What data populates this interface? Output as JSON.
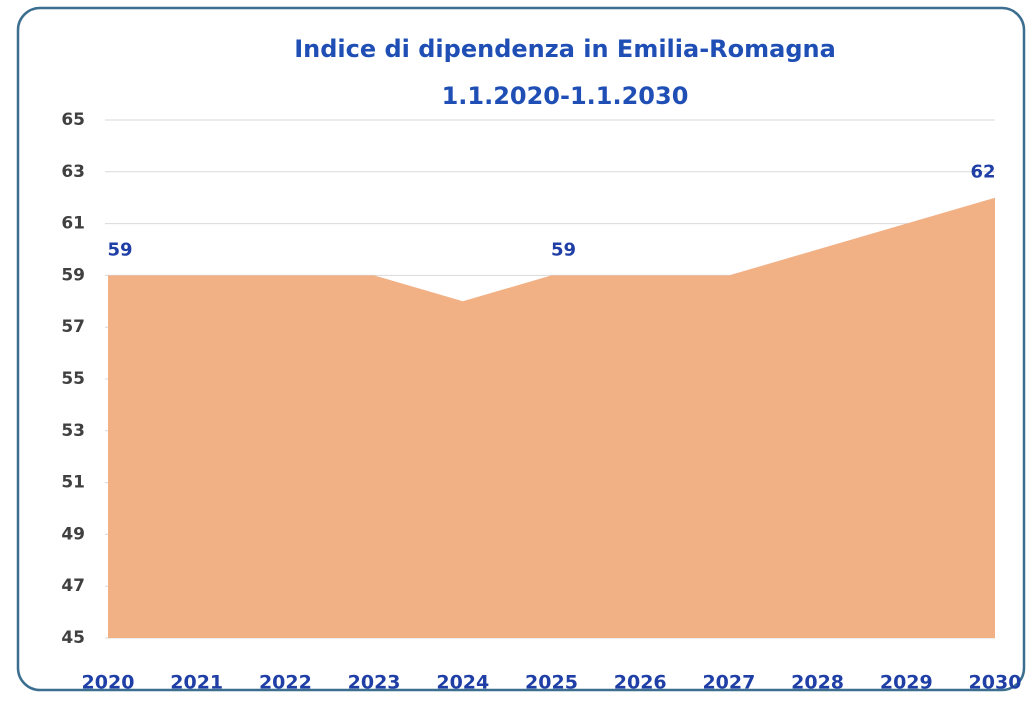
{
  "chart_data": {
    "type": "area",
    "title": "Indice di dipendenza in Emilia-Romagna",
    "subtitle": "1.1.2020-1.1.2030",
    "categories": [
      "2020",
      "2021",
      "2022",
      "2023",
      "2024",
      "2025",
      "2026",
      "2027",
      "2028",
      "2029",
      "2030"
    ],
    "values": [
      59,
      59,
      59,
      59,
      58,
      59,
      59,
      59,
      60,
      61,
      62
    ],
    "value_labels": [
      "59",
      null,
      null,
      null,
      null,
      "59",
      null,
      null,
      null,
      null,
      "62"
    ],
    "color": "#f2b085",
    "ylim": [
      45,
      65
    ],
    "yticks": [
      45,
      47,
      49,
      51,
      53,
      55,
      57,
      59,
      61,
      63,
      65
    ],
    "grid": true
  }
}
